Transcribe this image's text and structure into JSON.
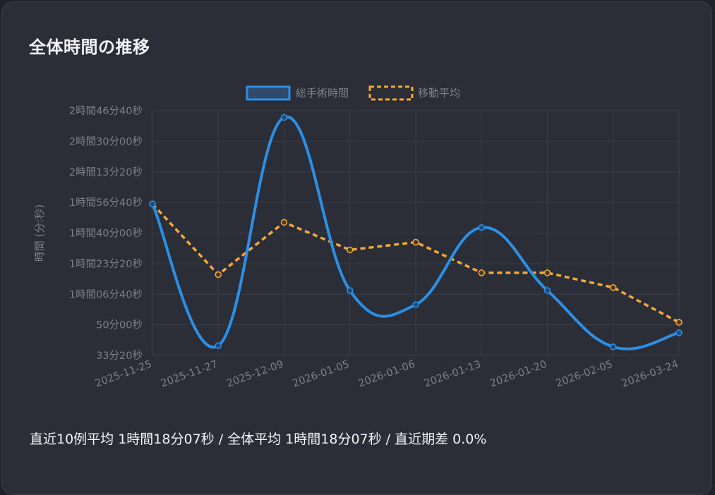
{
  "card": {
    "title": "全体時間の推移",
    "summary": "直近10例平均 1時間18分07秒 / 全体平均 1時間18分07秒 / 直近期差 0.0%"
  },
  "colors": {
    "background": "#2b2e37",
    "grid": "#3a3d47",
    "series_total": "#2b8fe6",
    "series_total_fill": "#2f4a6b",
    "series_avg": "#f5a83a",
    "axis_text": "#7b7f88"
  },
  "chart_data": {
    "type": "line",
    "title": "",
    "xlabel": "",
    "ylabel": "時間 (分:秒)",
    "y_unit": "seconds",
    "ylim": [
      2000,
      10000
    ],
    "y_ticks": [
      2000,
      3000,
      4000,
      5000,
      6000,
      7000,
      8000,
      9000,
      10000
    ],
    "y_tick_labels": [
      "33分20秒",
      "50分00秒",
      "1時間06分40秒",
      "1時間23分20秒",
      "1時間40分00秒",
      "1時間56分40秒",
      "2時間13分20秒",
      "2時間30分00秒",
      "2時間46分40秒"
    ],
    "categories": [
      "2025-11-25",
      "2025-11-27",
      "2025-12-09",
      "2026-01-05",
      "2026-01-06",
      "2026-01-13",
      "2026-01-20",
      "2026-02-05",
      "2026-03-24"
    ],
    "legend_position": "top-center",
    "grid": true,
    "series": [
      {
        "name": "総手術時間",
        "style": "solid-smooth",
        "values": [
          6950,
          2320,
          9780,
          4120,
          3660,
          6180,
          4120,
          2280,
          2740
        ]
      },
      {
        "name": "移動平均",
        "style": "dashed",
        "values": [
          6950,
          4640,
          6350,
          5450,
          5700,
          4700,
          4700,
          4220,
          3080
        ]
      }
    ]
  }
}
